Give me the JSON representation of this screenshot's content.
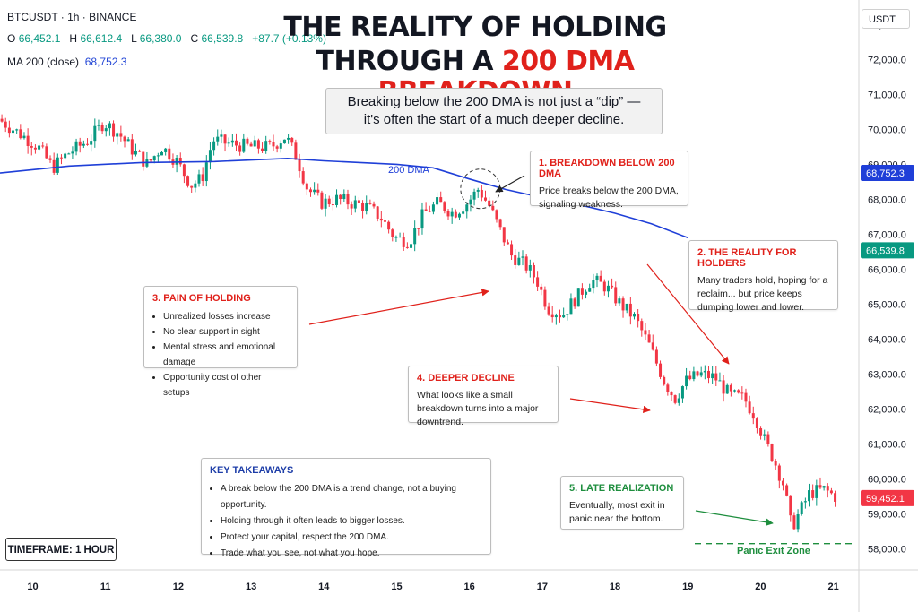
{
  "header": {
    "symbol": "BTCUSDT · 1h · BINANCE",
    "ohlc": {
      "o_label": "O",
      "o": "66,452.1",
      "h_label": "H",
      "h": "66,612.4",
      "l_label": "L",
      "l": "66,380.0",
      "c_label": "C",
      "c": "66,539.8",
      "change": "+87.7 (+0.13%)"
    },
    "ma_label": "MA 200 (close)",
    "ma_value": "68,752.3"
  },
  "title": {
    "line1": "THE REALITY OF HOLDING",
    "line2_prefix": "THROUGH A ",
    "line2_highlight": "200 DMA BREAKDOWN"
  },
  "subtitle": {
    "line1": "Breaking below the 200 DMA is not just a “dip” —",
    "line2": "it's often the start of a much deeper decline."
  },
  "currency_selector": "USDT",
  "timeframe": "TIMEFRAME: 1 HOUR",
  "ma_line_label": "200 DMA",
  "panic_zone_label": "Panic Exit Zone",
  "boxes": {
    "b1": {
      "heading": "1. BREAKDOWN BELOW 200 DMA",
      "text": "Price breaks below the 200 DMA, signaling weakness."
    },
    "b2": {
      "heading": "2. THE REALITY FOR HOLDERS",
      "text": "Many traders hold, hoping for a reclaim... but price keeps dumping lower and lower."
    },
    "b3": {
      "heading": "3. PAIN OF HOLDING",
      "items": [
        "Unrealized losses increase",
        "No clear support in sight",
        "Mental stress and emotional damage",
        "Opportunity cost of other setups"
      ]
    },
    "b4": {
      "heading": "4. DEEPER DECLINE",
      "text": "What looks like a small breakdown turns into a major downtrend."
    },
    "b5": {
      "heading": "5. LATE REALIZATION",
      "text": "Eventually, most exit in panic near the bottom."
    },
    "takeaways": {
      "heading": "KEY TAKEAWAYS",
      "items": [
        "A break below the 200 DMA is a trend change, not a buying opportunity.",
        "Holding through it often leads to bigger losses.",
        "Protect your capital, respect the 200 DMA.",
        "Trade what you see, not what you hope."
      ]
    }
  },
  "colors": {
    "up": "#089981",
    "down": "#f23645",
    "ma": "#1f3fd8",
    "annot": "#e0211b",
    "panic": "#1e8e3e"
  },
  "chart_data": {
    "type": "candlestick",
    "x_ticks": [
      "10",
      "11",
      "12",
      "13",
      "14",
      "15",
      "16",
      "17",
      "18",
      "19",
      "20",
      "21"
    ],
    "y_ticks": [
      "73,000.0",
      "72,000.0",
      "71,000.0",
      "70,000.0",
      "69,000.0",
      "68,000.0",
      "67,000.0",
      "66,000.0",
      "65,000.0",
      "64,000.0",
      "63,000.0",
      "62,000.0",
      "61,000.0",
      "60,000.0",
      "59,000.0",
      "58,000.0"
    ],
    "ylim": [
      57400,
      73700
    ],
    "xlim": [
      9.55,
      21.35
    ],
    "ma_badge": "68,752.3",
    "price_badge": "66,539.8",
    "last_badge": "59,452.1",
    "price_path": [
      [
        9.55,
        70300
      ],
      [
        9.9,
        69800
      ],
      [
        10.1,
        69500
      ],
      [
        10.3,
        68900
      ],
      [
        10.5,
        69300
      ],
      [
        10.8,
        69700
      ],
      [
        11.0,
        70200
      ],
      [
        11.2,
        69900
      ],
      [
        11.4,
        69400
      ],
      [
        11.6,
        69000
      ],
      [
        11.8,
        69500
      ],
      [
        12.0,
        69100
      ],
      [
        12.2,
        68400
      ],
      [
        12.35,
        68600
      ],
      [
        12.5,
        69700
      ],
      [
        12.7,
        69600
      ],
      [
        13.0,
        69500
      ],
      [
        13.3,
        69500
      ],
      [
        13.5,
        69800
      ],
      [
        13.65,
        69200
      ],
      [
        13.8,
        68300
      ],
      [
        14.0,
        67900
      ],
      [
        14.2,
        68000
      ],
      [
        14.4,
        67900
      ],
      [
        14.6,
        67800
      ],
      [
        14.8,
        67500
      ],
      [
        15.0,
        66900
      ],
      [
        15.2,
        66800
      ],
      [
        15.4,
        67600
      ],
      [
        15.6,
        67900
      ],
      [
        15.8,
        67600
      ],
      [
        16.0,
        67900
      ],
      [
        16.15,
        68300
      ],
      [
        16.3,
        67800
      ],
      [
        16.45,
        67100
      ],
      [
        16.6,
        66400
      ],
      [
        16.8,
        66100
      ],
      [
        16.95,
        65700
      ],
      [
        17.1,
        64900
      ],
      [
        17.3,
        64700
      ],
      [
        17.5,
        65200
      ],
      [
        17.7,
        65700
      ],
      [
        17.9,
        65500
      ],
      [
        18.1,
        65000
      ],
      [
        18.3,
        64600
      ],
      [
        18.5,
        63800
      ],
      [
        18.7,
        62800
      ],
      [
        18.85,
        62300
      ],
      [
        19.0,
        62800
      ],
      [
        19.2,
        63000
      ],
      [
        19.4,
        62900
      ],
      [
        19.6,
        62400
      ],
      [
        19.8,
        62300
      ],
      [
        19.95,
        61800
      ],
      [
        20.1,
        61000
      ],
      [
        20.2,
        60600
      ],
      [
        20.35,
        59800
      ],
      [
        20.45,
        58600
      ],
      [
        20.55,
        59000
      ],
      [
        20.7,
        59600
      ],
      [
        20.9,
        59700
      ],
      [
        21.05,
        59500
      ]
    ],
    "ma_path": [
      [
        9.55,
        68750
      ],
      [
        10.5,
        68950
      ],
      [
        11.5,
        69050
      ],
      [
        12.5,
        69080
      ],
      [
        13.5,
        69170
      ],
      [
        14.0,
        69100
      ],
      [
        15.0,
        69000
      ],
      [
        15.5,
        68900
      ],
      [
        16.0,
        68580
      ],
      [
        16.5,
        68280
      ],
      [
        17.0,
        68050
      ],
      [
        17.5,
        67850
      ],
      [
        18.0,
        67600
      ],
      [
        18.5,
        67300
      ],
      [
        19.0,
        66900
      ]
    ],
    "panic_level": 58150
  }
}
